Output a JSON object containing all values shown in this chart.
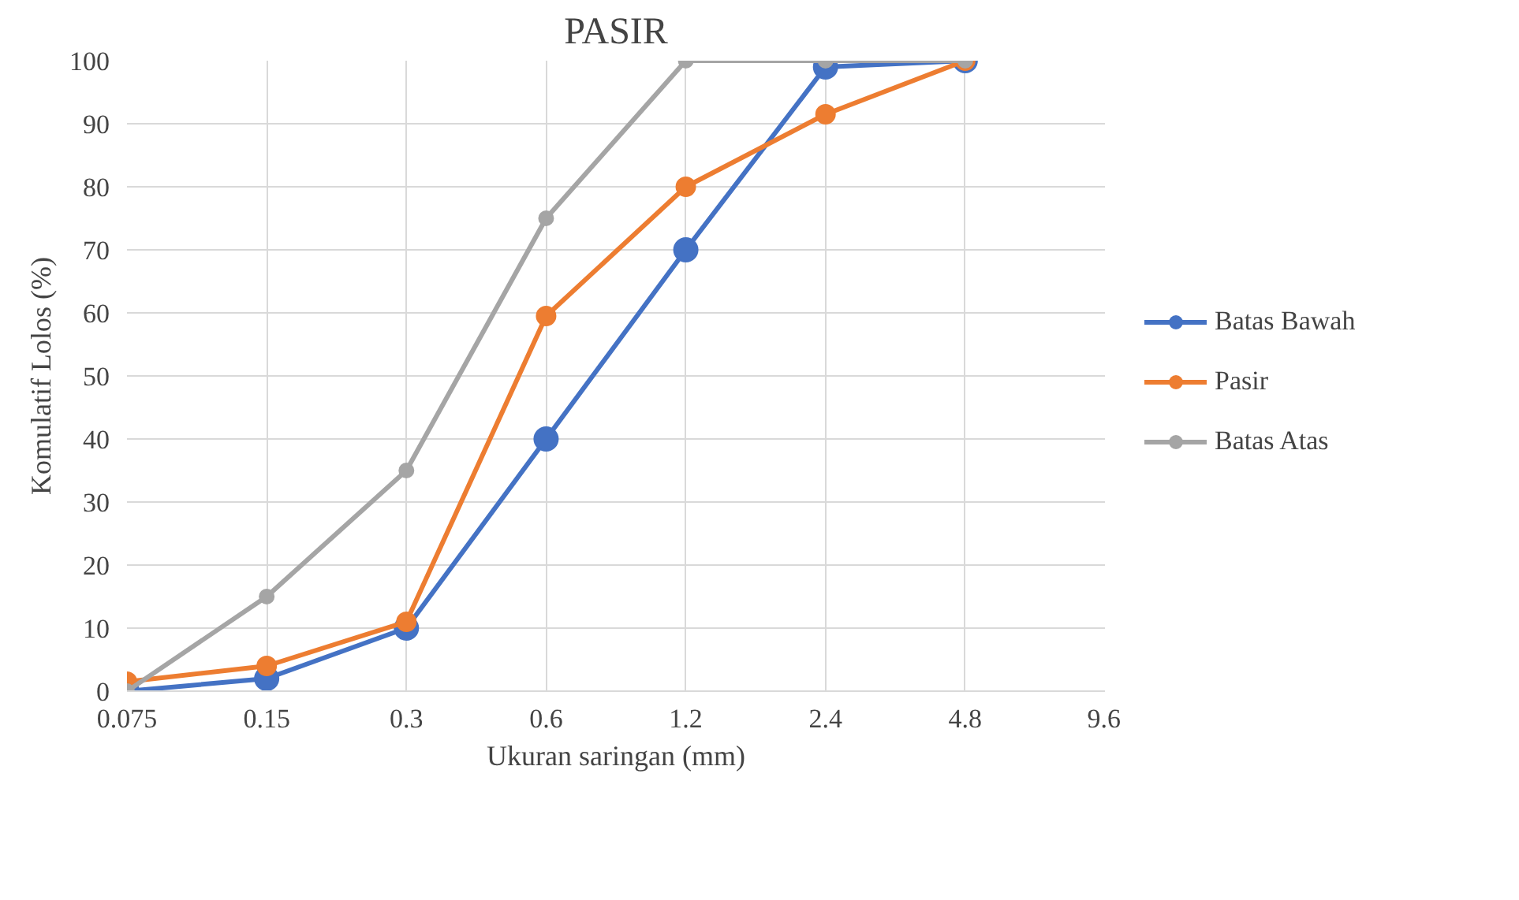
{
  "chart_data": {
    "type": "line",
    "title": "PASIR",
    "xlabel": "Ukuran saringan (mm)",
    "ylabel": "Komulatif Lolos (%)",
    "x": [
      0.075,
      0.15,
      0.3,
      0.6,
      1.2,
      2.4,
      4.8
    ],
    "series": [
      {
        "name": "Batas Bawah",
        "color": "#4472c4",
        "values": [
          0,
          2,
          10,
          40,
          70,
          99,
          100
        ]
      },
      {
        "name": "Pasir",
        "color": "#ed7d31",
        "values": [
          1.5,
          4,
          11,
          59.5,
          80,
          91.5,
          100
        ]
      },
      {
        "name": "Batas Atas",
        "color": "#a5a5a5",
        "values": [
          0,
          15,
          35,
          75,
          100,
          100,
          100
        ]
      }
    ],
    "log": "x",
    "xlim": [
      0.075,
      9.6
    ],
    "xticks": [
      0.075,
      0.15,
      0.3,
      0.6,
      1.2,
      2.4,
      4.8,
      9.6
    ],
    "ylim": [
      0,
      100
    ],
    "yticks": [
      0,
      10,
      20,
      30,
      40,
      50,
      60,
      70,
      80,
      90,
      100
    ],
    "grid": true,
    "legend": "right",
    "marker": "circle",
    "line_style": "solid"
  }
}
